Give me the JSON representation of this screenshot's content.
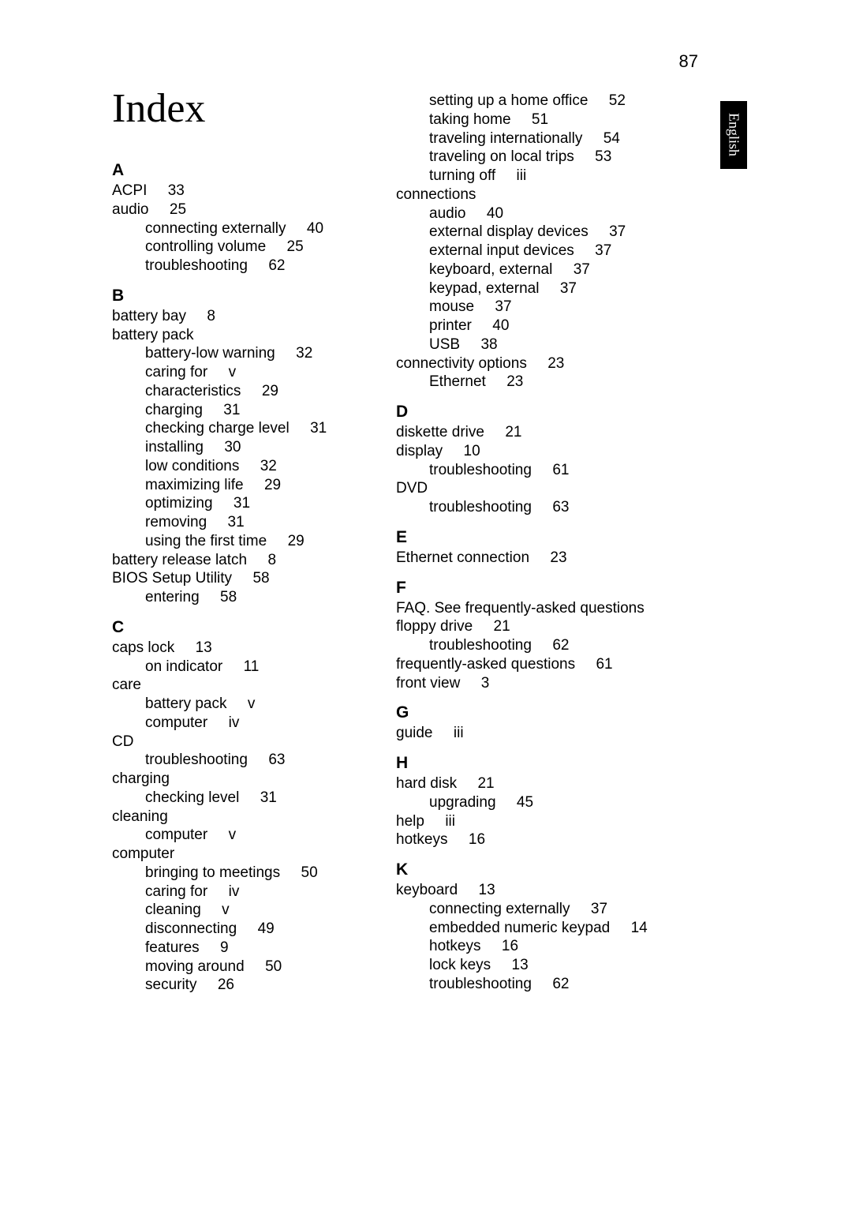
{
  "page_number": "87",
  "lang_tab": "English",
  "title": "Index",
  "left_column": [
    {
      "type": "letter",
      "text": "A"
    },
    {
      "type": "entry",
      "text": "ACPI     33"
    },
    {
      "type": "entry",
      "text": "audio     25"
    },
    {
      "type": "sub",
      "text": "connecting externally     40"
    },
    {
      "type": "sub",
      "text": "controlling volume     25"
    },
    {
      "type": "sub",
      "text": "troubleshooting     62"
    },
    {
      "type": "letter",
      "text": "B"
    },
    {
      "type": "entry",
      "text": "battery bay     8"
    },
    {
      "type": "entry",
      "text": "battery pack"
    },
    {
      "type": "sub",
      "text": "battery-low warning     32"
    },
    {
      "type": "sub",
      "text": "caring for     v"
    },
    {
      "type": "sub",
      "text": "characteristics     29"
    },
    {
      "type": "sub",
      "text": "charging     31"
    },
    {
      "type": "sub",
      "text": "checking charge level     31"
    },
    {
      "type": "sub",
      "text": "installing     30"
    },
    {
      "type": "sub",
      "text": "low conditions     32"
    },
    {
      "type": "sub",
      "text": "maximizing life     29"
    },
    {
      "type": "sub",
      "text": "optimizing     31"
    },
    {
      "type": "sub",
      "text": "removing     31"
    },
    {
      "type": "sub",
      "text": "using the first time     29"
    },
    {
      "type": "entry",
      "text": "battery release latch     8"
    },
    {
      "type": "entry",
      "text": "BIOS Setup Utility     58"
    },
    {
      "type": "sub",
      "text": "entering     58"
    },
    {
      "type": "letter",
      "text": "C"
    },
    {
      "type": "entry",
      "text": "caps lock     13"
    },
    {
      "type": "sub",
      "text": "on indicator     11"
    },
    {
      "type": "entry",
      "text": "care"
    },
    {
      "type": "sub",
      "text": "battery pack     v"
    },
    {
      "type": "sub",
      "text": "computer     iv"
    },
    {
      "type": "entry",
      "text": "CD"
    },
    {
      "type": "sub",
      "text": "troubleshooting     63"
    },
    {
      "type": "entry",
      "text": "charging"
    },
    {
      "type": "sub",
      "text": "checking level     31"
    },
    {
      "type": "entry",
      "text": "cleaning"
    },
    {
      "type": "sub",
      "text": "computer     v"
    },
    {
      "type": "entry",
      "text": "computer"
    },
    {
      "type": "sub",
      "text": "bringing to meetings     50"
    },
    {
      "type": "sub",
      "text": "caring for     iv"
    },
    {
      "type": "sub",
      "text": "cleaning     v"
    },
    {
      "type": "sub",
      "text": "disconnecting     49"
    },
    {
      "type": "sub",
      "text": "features     9"
    },
    {
      "type": "sub",
      "text": "moving around     50"
    },
    {
      "type": "sub",
      "text": "security     26"
    }
  ],
  "right_column": [
    {
      "type": "sub",
      "text": "setting up a home office     52"
    },
    {
      "type": "sub",
      "text": "taking home     51"
    },
    {
      "type": "sub",
      "text": "traveling internationally     54"
    },
    {
      "type": "sub",
      "text": "traveling on local trips     53"
    },
    {
      "type": "sub",
      "text": "turning off     iii"
    },
    {
      "type": "entry",
      "text": "connections"
    },
    {
      "type": "sub",
      "text": "audio     40"
    },
    {
      "type": "sub",
      "text": "external display devices     37"
    },
    {
      "type": "sub",
      "text": "external input devices     37"
    },
    {
      "type": "sub",
      "text": "keyboard, external     37"
    },
    {
      "type": "sub",
      "text": "keypad, external     37"
    },
    {
      "type": "sub",
      "text": "mouse     37"
    },
    {
      "type": "sub",
      "text": "printer     40"
    },
    {
      "type": "sub",
      "text": "USB     38"
    },
    {
      "type": "entry",
      "text": "connectivity options     23"
    },
    {
      "type": "sub",
      "text": "Ethernet     23"
    },
    {
      "type": "letter",
      "text": "D"
    },
    {
      "type": "entry",
      "text": "diskette drive     21"
    },
    {
      "type": "entry",
      "text": "display     10"
    },
    {
      "type": "sub",
      "text": "troubleshooting     61"
    },
    {
      "type": "entry",
      "text": "DVD"
    },
    {
      "type": "sub",
      "text": "troubleshooting     63"
    },
    {
      "type": "letter",
      "text": "E"
    },
    {
      "type": "entry",
      "text": "Ethernet connection     23"
    },
    {
      "type": "letter",
      "text": "F"
    },
    {
      "type": "entry",
      "text": "FAQ. See frequently-asked questions"
    },
    {
      "type": "entry",
      "text": "floppy drive     21"
    },
    {
      "type": "sub",
      "text": "troubleshooting     62"
    },
    {
      "type": "entry",
      "text": "frequently-asked questions     61"
    },
    {
      "type": "entry",
      "text": "front view     3"
    },
    {
      "type": "letter",
      "text": "G"
    },
    {
      "type": "entry",
      "text": "guide     iii"
    },
    {
      "type": "letter",
      "text": "H"
    },
    {
      "type": "entry",
      "text": "hard disk     21"
    },
    {
      "type": "sub",
      "text": "upgrading     45"
    },
    {
      "type": "entry",
      "text": "help     iii"
    },
    {
      "type": "entry",
      "text": "hotkeys     16"
    },
    {
      "type": "letter",
      "text": "K"
    },
    {
      "type": "entry",
      "text": "keyboard     13"
    },
    {
      "type": "sub",
      "text": "connecting externally     37"
    },
    {
      "type": "sub",
      "text": "embedded numeric keypad     14"
    },
    {
      "type": "sub",
      "text": "hotkeys     16"
    },
    {
      "type": "sub",
      "text": "lock keys     13"
    },
    {
      "type": "sub",
      "text": "troubleshooting     62"
    }
  ]
}
